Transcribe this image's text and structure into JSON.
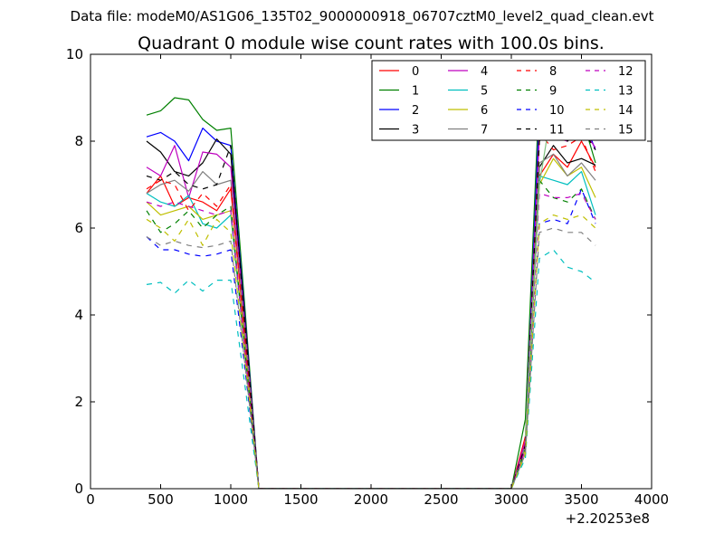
{
  "chart_data": {
    "type": "line",
    "suptitle": "Data file: modeM0/AS1G06_135T02_9000000918_06707cztM0_level2_quad_clean.evt",
    "title": "Quadrant 0 module wise count rates with 100.0s bins.",
    "xlabel": "",
    "ylabel": "",
    "x_offset_label": "+2.20253e8",
    "xlim": [
      0,
      4000
    ],
    "ylim": [
      0,
      10
    ],
    "xticks": [
      0,
      500,
      1000,
      1500,
      2000,
      2500,
      3000,
      3500,
      4000
    ],
    "yticks": [
      0,
      2,
      4,
      6,
      8,
      10
    ],
    "grid": false,
    "legend_position": "top-right",
    "x": [
      400,
      500,
      600,
      700,
      800,
      900,
      1000,
      1100,
      1200,
      1300,
      1400,
      1500,
      1600,
      1700,
      1800,
      1900,
      2000,
      2100,
      2200,
      2300,
      2400,
      2500,
      2600,
      2700,
      2800,
      2900,
      3000,
      3100,
      3200,
      3300,
      3400,
      3500,
      3600
    ],
    "series": [
      {
        "name": "0",
        "color": "#ff0000",
        "dash": "solid",
        "values": [
          6.8,
          7.2,
          6.5,
          6.7,
          6.6,
          6.4,
          6.9,
          3.5,
          0,
          0,
          0,
          0,
          0,
          0,
          0,
          0,
          0,
          0,
          0,
          0,
          0,
          0,
          0,
          0,
          0,
          0,
          0,
          1.2,
          7.2,
          7.7,
          7.4,
          8.0,
          7.4
        ]
      },
      {
        "name": "1",
        "color": "#008000",
        "dash": "solid",
        "values": [
          8.6,
          8.7,
          9.0,
          8.95,
          8.5,
          8.25,
          8.3,
          4.2,
          0,
          0,
          0,
          0,
          0,
          0,
          0,
          0,
          0,
          0,
          0,
          0,
          0,
          0,
          0,
          0,
          0,
          0,
          0,
          1.6,
          9.2,
          9.1,
          8.7,
          8.6,
          7.5
        ]
      },
      {
        "name": "2",
        "color": "#0000ff",
        "dash": "solid",
        "values": [
          8.1,
          8.2,
          8.0,
          7.55,
          8.3,
          8.0,
          7.9,
          4.0,
          0,
          0,
          0,
          0,
          0,
          0,
          0,
          0,
          0,
          0,
          0,
          0,
          0,
          0,
          0,
          0,
          0,
          0,
          0,
          1.0,
          8.7,
          8.2,
          8.1,
          8.6,
          7.8
        ]
      },
      {
        "name": "3",
        "color": "#000000",
        "dash": "solid",
        "values": [
          8.0,
          7.75,
          7.3,
          7.2,
          7.5,
          8.05,
          7.7,
          3.9,
          0,
          0,
          0,
          0,
          0,
          0,
          0,
          0,
          0,
          0,
          0,
          0,
          0,
          0,
          0,
          0,
          0,
          0,
          0,
          1.0,
          7.4,
          7.9,
          7.5,
          7.6,
          7.45
        ]
      },
      {
        "name": "4",
        "color": "#bf00bf",
        "dash": "solid",
        "values": [
          7.4,
          7.2,
          7.9,
          6.7,
          7.75,
          7.7,
          7.4,
          3.8,
          0,
          0,
          0,
          0,
          0,
          0,
          0,
          0,
          0,
          0,
          0,
          0,
          0,
          0,
          0,
          0,
          0,
          0,
          0,
          1.1,
          8.1,
          8.1,
          8.0,
          8.3,
          7.85
        ]
      },
      {
        "name": "5",
        "color": "#00bfbf",
        "dash": "solid",
        "values": [
          6.8,
          6.6,
          6.5,
          6.75,
          6.1,
          6.0,
          6.3,
          3.2,
          0,
          0,
          0,
          0,
          0,
          0,
          0,
          0,
          0,
          0,
          0,
          0,
          0,
          0,
          0,
          0,
          0,
          0,
          0,
          0.9,
          7.2,
          7.1,
          7.0,
          7.3,
          6.3
        ]
      },
      {
        "name": "6",
        "color": "#bfbf00",
        "dash": "solid",
        "values": [
          6.6,
          6.3,
          6.4,
          6.5,
          6.2,
          6.3,
          6.4,
          3.3,
          0,
          0,
          0,
          0,
          0,
          0,
          0,
          0,
          0,
          0,
          0,
          0,
          0,
          0,
          0,
          0,
          0,
          0,
          0,
          0.9,
          7.0,
          7.6,
          7.2,
          7.4,
          6.7
        ]
      },
      {
        "name": "7",
        "color": "#808080",
        "dash": "solid",
        "values": [
          6.8,
          7.0,
          7.1,
          6.85,
          7.3,
          7.0,
          7.1,
          3.6,
          0,
          0,
          0,
          0,
          0,
          0,
          0,
          0,
          0,
          0,
          0,
          0,
          0,
          0,
          0,
          0,
          0,
          0,
          0,
          1.0,
          7.5,
          7.7,
          7.2,
          7.5,
          7.1
        ]
      },
      {
        "name": "8",
        "color": "#ff0000",
        "dash": "dashed",
        "values": [
          6.9,
          7.1,
          7.0,
          6.4,
          6.8,
          6.5,
          7.0,
          3.5,
          0,
          0,
          0,
          0,
          0,
          0,
          0,
          0,
          0,
          0,
          0,
          0,
          0,
          0,
          0,
          0,
          0,
          0,
          0,
          1.0,
          8.2,
          7.8,
          7.9,
          8.1,
          7.3
        ]
      },
      {
        "name": "9",
        "color": "#008000",
        "dash": "dashed",
        "values": [
          6.4,
          5.9,
          6.1,
          6.4,
          6.0,
          6.3,
          6.5,
          3.2,
          0,
          0,
          0,
          0,
          0,
          0,
          0,
          0,
          0,
          0,
          0,
          0,
          0,
          0,
          0,
          0,
          0,
          0,
          0,
          0.9,
          7.1,
          6.7,
          6.6,
          6.9,
          6.2
        ]
      },
      {
        "name": "10",
        "color": "#0000ff",
        "dash": "dashed",
        "values": [
          5.8,
          5.5,
          5.5,
          5.4,
          5.35,
          5.4,
          5.5,
          2.8,
          0,
          0,
          0,
          0,
          0,
          0,
          0,
          0,
          0,
          0,
          0,
          0,
          0,
          0,
          0,
          0,
          0,
          0,
          0,
          0.8,
          6.1,
          6.2,
          6.1,
          6.9,
          6.1
        ]
      },
      {
        "name": "11",
        "color": "#000000",
        "dash": "dashed",
        "values": [
          7.2,
          7.1,
          7.3,
          7.0,
          6.9,
          7.0,
          7.9,
          3.8,
          0,
          0,
          0,
          0,
          0,
          0,
          0,
          0,
          0,
          0,
          0,
          0,
          0,
          0,
          0,
          0,
          0,
          0,
          0,
          1.0,
          8.0,
          8.5,
          8.0,
          8.3,
          7.8
        ]
      },
      {
        "name": "12",
        "color": "#bf00bf",
        "dash": "dashed",
        "values": [
          6.6,
          6.5,
          6.6,
          6.5,
          6.4,
          6.3,
          6.4,
          3.2,
          0,
          0,
          0,
          0,
          0,
          0,
          0,
          0,
          0,
          0,
          0,
          0,
          0,
          0,
          0,
          0,
          0,
          0,
          0,
          0.9,
          6.8,
          6.7,
          6.7,
          6.8,
          6.2
        ]
      },
      {
        "name": "13",
        "color": "#00bfbf",
        "dash": "dashed",
        "values": [
          4.7,
          4.75,
          4.5,
          4.8,
          4.55,
          4.8,
          4.8,
          2.4,
          0,
          0,
          0,
          0,
          0,
          0,
          0,
          0,
          0,
          0,
          0,
          0,
          0,
          0,
          0,
          0,
          0,
          0,
          0,
          0.7,
          5.3,
          5.5,
          5.1,
          5.0,
          4.75
        ]
      },
      {
        "name": "14",
        "color": "#bfbf00",
        "dash": "dashed",
        "values": [
          6.2,
          6.0,
          5.7,
          6.2,
          5.6,
          6.2,
          5.9,
          3.0,
          0,
          0,
          0,
          0,
          0,
          0,
          0,
          0,
          0,
          0,
          0,
          0,
          0,
          0,
          0,
          0,
          0,
          0,
          0,
          0.8,
          6.1,
          6.3,
          6.2,
          6.3,
          6.0
        ]
      },
      {
        "name": "15",
        "color": "#808080",
        "dash": "dashed",
        "values": [
          5.8,
          5.6,
          5.7,
          5.6,
          5.55,
          5.6,
          5.7,
          2.9,
          0,
          0,
          0,
          0,
          0,
          0,
          0,
          0,
          0,
          0,
          0,
          0,
          0,
          0,
          0,
          0,
          0,
          0,
          0,
          0.8,
          5.9,
          6.0,
          5.9,
          5.9,
          5.6
        ]
      },
      {
        "name": "",
        "color": "#80c080",
        "dash": "solid",
        "values": [
          null,
          null,
          null,
          null,
          null,
          null,
          null,
          null,
          null,
          null,
          null,
          null,
          null,
          null,
          null,
          null,
          null,
          null,
          null,
          null,
          null,
          null,
          null,
          null,
          null,
          null,
          null,
          1.2,
          7.0,
          9.0,
          8.6,
          9.8,
          8.6
        ]
      }
    ]
  }
}
